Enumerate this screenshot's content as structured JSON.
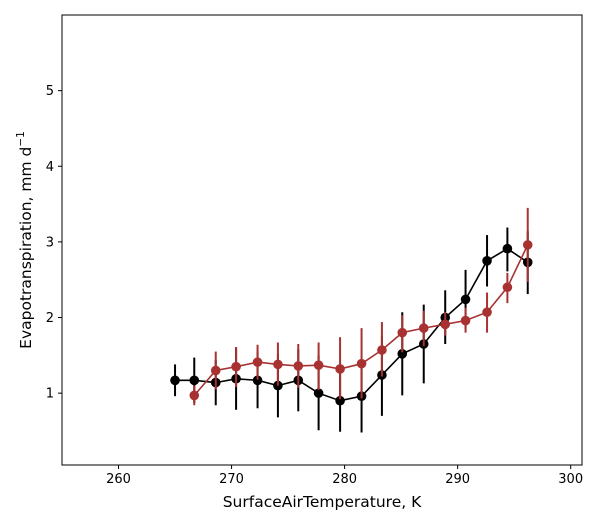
{
  "chart_data": {
    "type": "line",
    "xlabel": "SurfaceAirTemperature,  K",
    "ylabel": "Evapotranspiration,  mm d",
    "ylabel_superscript": "−1",
    "xlim": [
      255,
      301
    ],
    "ylim": [
      0.05,
      6.0
    ],
    "x_ticks": [
      260,
      270,
      280,
      290,
      300
    ],
    "y_ticks": [
      1,
      2,
      3,
      4,
      5
    ],
    "grid": false,
    "legend": "none",
    "series": [
      {
        "color": "#000000",
        "points": [
          {
            "x": 265.0,
            "y": 1.17,
            "lo": 0.96,
            "hi": 1.38
          },
          {
            "x": 266.7,
            "y": 1.17,
            "lo": 0.87,
            "hi": 1.47
          },
          {
            "x": 268.6,
            "y": 1.14,
            "lo": 0.84,
            "hi": 1.44
          },
          {
            "x": 270.4,
            "y": 1.19,
            "lo": 0.78,
            "hi": 1.6
          },
          {
            "x": 272.3,
            "y": 1.17,
            "lo": 0.8,
            "hi": 1.55
          },
          {
            "x": 274.1,
            "y": 1.1,
            "lo": 0.68,
            "hi": 1.52
          },
          {
            "x": 275.9,
            "y": 1.17,
            "lo": 0.76,
            "hi": 1.58
          },
          {
            "x": 277.7,
            "y": 1.0,
            "lo": 0.51,
            "hi": 1.5
          },
          {
            "x": 279.6,
            "y": 0.9,
            "lo": 0.49,
            "hi": 1.31
          },
          {
            "x": 281.5,
            "y": 0.96,
            "lo": 0.48,
            "hi": 1.45
          },
          {
            "x": 283.3,
            "y": 1.24,
            "lo": 0.7,
            "hi": 1.76
          },
          {
            "x": 285.1,
            "y": 1.52,
            "lo": 0.97,
            "hi": 2.07
          },
          {
            "x": 287.0,
            "y": 1.65,
            "lo": 1.13,
            "hi": 2.17
          },
          {
            "x": 288.9,
            "y": 2.0,
            "lo": 1.65,
            "hi": 2.36
          },
          {
            "x": 290.7,
            "y": 2.24,
            "lo": 1.85,
            "hi": 2.63
          },
          {
            "x": 292.6,
            "y": 2.75,
            "lo": 2.41,
            "hi": 3.09
          },
          {
            "x": 294.4,
            "y": 2.91,
            "lo": 2.61,
            "hi": 3.19
          },
          {
            "x": 296.2,
            "y": 2.73,
            "lo": 2.31,
            "hi": 3.14
          }
        ]
      },
      {
        "color": "#a83232",
        "points": [
          {
            "x": 266.7,
            "y": 0.97,
            "lo": 0.84,
            "hi": 1.1
          },
          {
            "x": 268.6,
            "y": 1.3,
            "lo": 1.05,
            "hi": 1.55
          },
          {
            "x": 270.4,
            "y": 1.35,
            "lo": 1.08,
            "hi": 1.61
          },
          {
            "x": 272.3,
            "y": 1.41,
            "lo": 1.18,
            "hi": 1.64
          },
          {
            "x": 274.1,
            "y": 1.38,
            "lo": 1.1,
            "hi": 1.67
          },
          {
            "x": 275.9,
            "y": 1.36,
            "lo": 1.07,
            "hi": 1.65
          },
          {
            "x": 277.7,
            "y": 1.37,
            "lo": 1.04,
            "hi": 1.67
          },
          {
            "x": 279.6,
            "y": 1.32,
            "lo": 0.92,
            "hi": 1.74
          },
          {
            "x": 281.5,
            "y": 1.39,
            "lo": 0.93,
            "hi": 1.86
          },
          {
            "x": 283.3,
            "y": 1.57,
            "lo": 1.22,
            "hi": 1.94
          },
          {
            "x": 285.1,
            "y": 1.8,
            "lo": 1.54,
            "hi": 2.03
          },
          {
            "x": 287.0,
            "y": 1.86,
            "lo": 1.62,
            "hi": 2.09
          },
          {
            "x": 288.9,
            "y": 1.91,
            "lo": 1.76,
            "hi": 2.07
          },
          {
            "x": 290.7,
            "y": 1.96,
            "lo": 1.8,
            "hi": 2.13
          },
          {
            "x": 292.6,
            "y": 2.07,
            "lo": 1.8,
            "hi": 2.33
          },
          {
            "x": 294.4,
            "y": 2.4,
            "lo": 2.19,
            "hi": 2.59
          },
          {
            "x": 296.2,
            "y": 2.96,
            "lo": 2.47,
            "hi": 3.45
          }
        ]
      }
    ]
  }
}
